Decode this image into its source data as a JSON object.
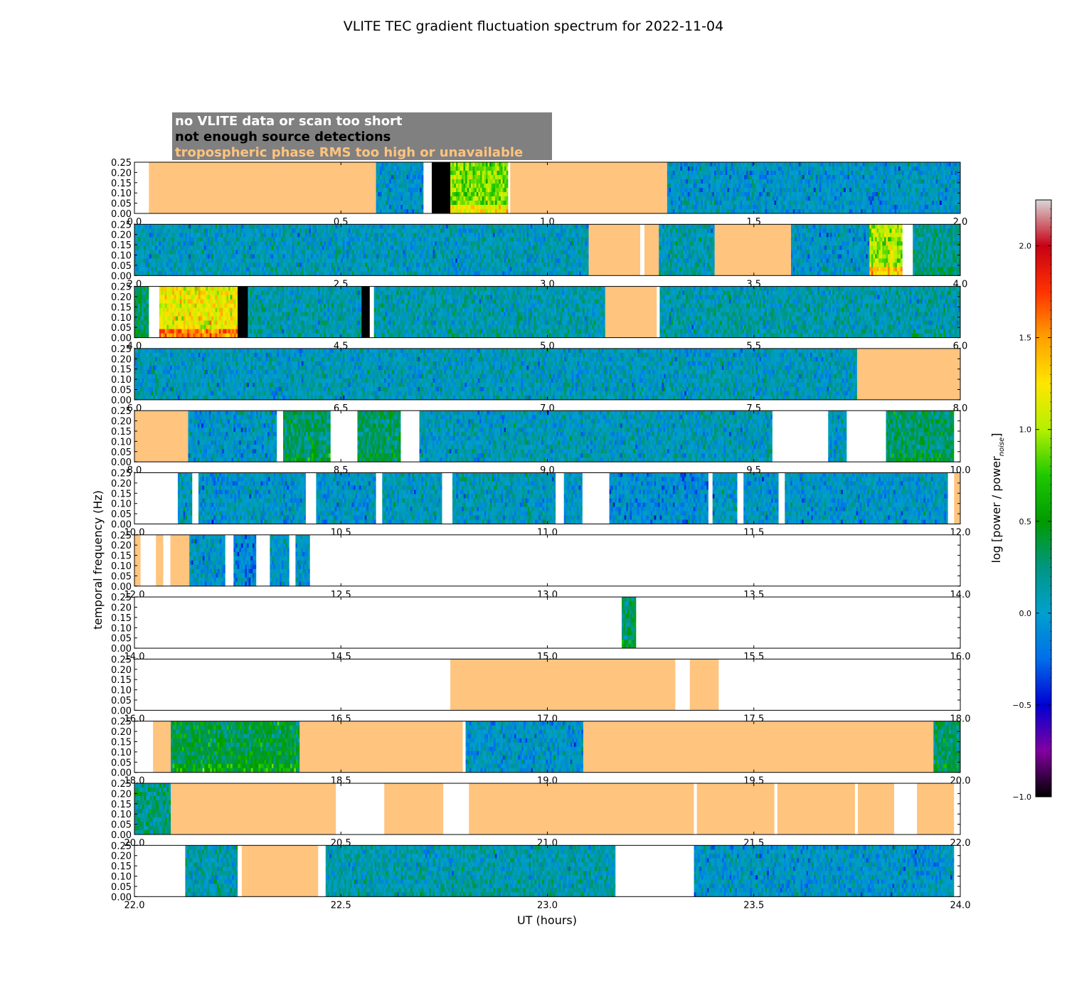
{
  "chart_data": {
    "type": "heatmap",
    "title": "VLITE TEC gradient fluctuation spectrum for 2022-11-04",
    "xlabel": "UT (hours)",
    "ylabel": "temporal frequency (Hz)",
    "colorbar_label": "log [power / power",
    "colorbar_label_sub": "noise",
    "colorbar_label_end": "]",
    "colorbar_range": [
      -1.0,
      2.25
    ],
    "colorbar_ticks": [
      "2.0",
      "1.5",
      "1.0",
      "0.5",
      "0.0",
      "−0.5",
      "−1.0"
    ],
    "colorbar_tick_values": [
      2.0,
      1.5,
      1.0,
      0.5,
      0.0,
      -0.5,
      -1.0
    ],
    "ylim": [
      0,
      0.25
    ],
    "yticks": [
      "0.25",
      "0.20",
      "0.15",
      "0.10",
      "0.05",
      "0.00"
    ],
    "ytick_values": [
      0.25,
      0.2,
      0.15,
      0.1,
      0.05,
      0.0
    ],
    "legend": [
      {
        "label": "no VLITE data or scan too short",
        "color": "#ffffff"
      },
      {
        "label": "not enough source detections",
        "color": "#000000"
      },
      {
        "label": "tropospheric phase RMS too high or unavailable",
        "color": "#ffc47e"
      }
    ],
    "colors": {
      "flagged_troposphere": "#ffc47e",
      "no_detections": "#000000",
      "no_data": "#ffffff"
    },
    "panels": [
      {
        "xlim": [
          0,
          2
        ],
        "xticks": [
          "0.0",
          "0.5",
          "1.0",
          "1.5",
          "2.0"
        ],
        "segments": [
          {
            "start": 0.0,
            "end": 0.035,
            "status": "nodata"
          },
          {
            "start": 0.035,
            "end": 0.585,
            "status": "tropo"
          },
          {
            "start": 0.585,
            "end": 0.7,
            "status": "data",
            "level": 0.0
          },
          {
            "start": 0.7,
            "end": 0.72,
            "status": "nodata"
          },
          {
            "start": 0.72,
            "end": 0.765,
            "status": "nodet"
          },
          {
            "start": 0.765,
            "end": 0.905,
            "status": "data",
            "level": 0.9
          },
          {
            "start": 0.905,
            "end": 0.91,
            "status": "nodata"
          },
          {
            "start": 0.91,
            "end": 1.29,
            "status": "tropo"
          },
          {
            "start": 1.29,
            "end": 2.0,
            "status": "data",
            "level": 0.0
          }
        ]
      },
      {
        "xlim": [
          2,
          4
        ],
        "xticks": [
          "2.0",
          "2.5",
          "3.0",
          "3.5",
          "4.0"
        ],
        "segments": [
          {
            "start": 2.0,
            "end": 3.1,
            "status": "data",
            "level": 0.05
          },
          {
            "start": 3.1,
            "end": 3.225,
            "status": "tropo"
          },
          {
            "start": 3.225,
            "end": 3.235,
            "status": "nodata"
          },
          {
            "start": 3.235,
            "end": 3.27,
            "status": "tropo"
          },
          {
            "start": 3.27,
            "end": 3.405,
            "status": "data",
            "level": 0.1
          },
          {
            "start": 3.405,
            "end": 3.59,
            "status": "tropo"
          },
          {
            "start": 3.59,
            "end": 3.78,
            "status": "data",
            "level": 0.0
          },
          {
            "start": 3.78,
            "end": 3.86,
            "status": "data",
            "level": 1.0
          },
          {
            "start": 3.86,
            "end": 3.885,
            "status": "nodata"
          },
          {
            "start": 3.885,
            "end": 4.0,
            "status": "data",
            "level": 0.2
          }
        ]
      },
      {
        "xlim": [
          4,
          6
        ],
        "xticks": [
          "4.0",
          "4.5",
          "5.0",
          "5.5",
          "6.0"
        ],
        "segments": [
          {
            "start": 4.0,
            "end": 4.035,
            "status": "data",
            "level": 0.3
          },
          {
            "start": 4.035,
            "end": 4.06,
            "status": "nodata"
          },
          {
            "start": 4.06,
            "end": 4.25,
            "status": "data",
            "level": 1.2
          },
          {
            "start": 4.25,
            "end": 4.275,
            "status": "nodet"
          },
          {
            "start": 4.275,
            "end": 4.55,
            "status": "data",
            "level": 0.1
          },
          {
            "start": 4.55,
            "end": 4.57,
            "status": "nodet"
          },
          {
            "start": 4.57,
            "end": 4.58,
            "status": "nodata"
          },
          {
            "start": 4.58,
            "end": 5.14,
            "status": "data",
            "level": 0.1
          },
          {
            "start": 5.14,
            "end": 5.265,
            "status": "tropo"
          },
          {
            "start": 5.265,
            "end": 5.272,
            "status": "nodata"
          },
          {
            "start": 5.272,
            "end": 6.0,
            "status": "data",
            "level": 0.1
          }
        ]
      },
      {
        "xlim": [
          6,
          8
        ],
        "xticks": [
          "6.0",
          "6.5",
          "7.0",
          "7.5",
          "8.0"
        ],
        "segments": [
          {
            "start": 6.0,
            "end": 7.75,
            "status": "data",
            "level": 0.05
          },
          {
            "start": 7.75,
            "end": 8.0,
            "status": "tropo"
          }
        ]
      },
      {
        "xlim": [
          8,
          10
        ],
        "xticks": [
          "8.0",
          "8.5",
          "9.0",
          "9.5",
          "10.0"
        ],
        "segments": [
          {
            "start": 8.0,
            "end": 8.13,
            "status": "tropo"
          },
          {
            "start": 8.13,
            "end": 8.345,
            "status": "data",
            "level": 0.0
          },
          {
            "start": 8.345,
            "end": 8.36,
            "status": "nodata"
          },
          {
            "start": 8.36,
            "end": 8.475,
            "status": "data",
            "level": 0.3
          },
          {
            "start": 8.475,
            "end": 8.54,
            "status": "nodata"
          },
          {
            "start": 8.54,
            "end": 8.645,
            "status": "data",
            "level": 0.3
          },
          {
            "start": 8.645,
            "end": 8.69,
            "status": "nodata"
          },
          {
            "start": 8.69,
            "end": 9.545,
            "status": "data",
            "level": 0.05
          },
          {
            "start": 9.545,
            "end": 9.68,
            "status": "nodata"
          },
          {
            "start": 9.68,
            "end": 9.725,
            "status": "data",
            "level": 0.05
          },
          {
            "start": 9.725,
            "end": 9.82,
            "status": "nodata"
          },
          {
            "start": 9.82,
            "end": 9.985,
            "status": "data",
            "level": 0.3
          },
          {
            "start": 9.985,
            "end": 10.0,
            "status": "nodata"
          }
        ]
      },
      {
        "xlim": [
          10,
          12
        ],
        "xticks": [
          "10.0",
          "10.5",
          "11.0",
          "11.5",
          "12.0"
        ],
        "segments": [
          {
            "start": 10.0,
            "end": 10.105,
            "status": "nodata"
          },
          {
            "start": 10.105,
            "end": 10.14,
            "status": "data",
            "level": 0.05
          },
          {
            "start": 10.14,
            "end": 10.155,
            "status": "nodata"
          },
          {
            "start": 10.155,
            "end": 10.415,
            "status": "data",
            "level": 0.0
          },
          {
            "start": 10.415,
            "end": 10.44,
            "status": "nodata"
          },
          {
            "start": 10.44,
            "end": 10.585,
            "status": "data",
            "level": 0.0
          },
          {
            "start": 10.585,
            "end": 10.6,
            "status": "nodata"
          },
          {
            "start": 10.6,
            "end": 10.745,
            "status": "data",
            "level": 0.05
          },
          {
            "start": 10.745,
            "end": 10.77,
            "status": "nodata"
          },
          {
            "start": 10.77,
            "end": 11.02,
            "status": "data",
            "level": 0.05
          },
          {
            "start": 11.02,
            "end": 11.04,
            "status": "nodata"
          },
          {
            "start": 11.04,
            "end": 11.085,
            "status": "data",
            "level": 0.0
          },
          {
            "start": 11.085,
            "end": 11.15,
            "status": "nodata"
          },
          {
            "start": 11.15,
            "end": 11.39,
            "status": "data",
            "level": -0.05
          },
          {
            "start": 11.39,
            "end": 11.4,
            "status": "nodata"
          },
          {
            "start": 11.4,
            "end": 11.46,
            "status": "data",
            "level": 0.0
          },
          {
            "start": 11.46,
            "end": 11.475,
            "status": "nodata"
          },
          {
            "start": 11.475,
            "end": 11.56,
            "status": "data",
            "level": 0.0
          },
          {
            "start": 11.56,
            "end": 11.575,
            "status": "nodata"
          },
          {
            "start": 11.575,
            "end": 11.97,
            "status": "data",
            "level": 0.0
          },
          {
            "start": 11.97,
            "end": 11.985,
            "status": "nodata"
          },
          {
            "start": 11.985,
            "end": 12.0,
            "status": "tropo"
          }
        ]
      },
      {
        "xlim": [
          12,
          14
        ],
        "xticks": [
          "12.0",
          "12.5",
          "13.0",
          "13.5",
          "14.0"
        ],
        "segments": [
          {
            "start": 12.0,
            "end": 12.015,
            "status": "tropo"
          },
          {
            "start": 12.015,
            "end": 12.052,
            "status": "nodata"
          },
          {
            "start": 12.052,
            "end": 12.07,
            "status": "tropo"
          },
          {
            "start": 12.07,
            "end": 12.087,
            "status": "nodata"
          },
          {
            "start": 12.087,
            "end": 12.133,
            "status": "tropo"
          },
          {
            "start": 12.133,
            "end": 12.22,
            "status": "data",
            "level": 0.0
          },
          {
            "start": 12.22,
            "end": 12.24,
            "status": "nodata"
          },
          {
            "start": 12.24,
            "end": 12.295,
            "status": "data",
            "level": -0.1
          },
          {
            "start": 12.295,
            "end": 12.328,
            "status": "nodata"
          },
          {
            "start": 12.328,
            "end": 12.375,
            "status": "data",
            "level": 0.0
          },
          {
            "start": 12.375,
            "end": 12.39,
            "status": "nodata"
          },
          {
            "start": 12.39,
            "end": 12.425,
            "status": "data",
            "level": 0.0
          },
          {
            "start": 12.425,
            "end": 14.0,
            "status": "nodata"
          }
        ]
      },
      {
        "xlim": [
          14,
          16
        ],
        "xticks": [
          "14.0",
          "14.5",
          "15.0",
          "15.5",
          "16.0"
        ],
        "segments": [
          {
            "start": 14.0,
            "end": 15.18,
            "status": "nodata"
          },
          {
            "start": 15.18,
            "end": 15.215,
            "status": "data",
            "level": 0.3
          },
          {
            "start": 15.215,
            "end": 16.0,
            "status": "nodata"
          }
        ]
      },
      {
        "xlim": [
          16,
          18
        ],
        "xticks": [
          "16.0",
          "16.5",
          "17.0",
          "17.5",
          "18.0"
        ],
        "segments": [
          {
            "start": 16.0,
            "end": 16.765,
            "status": "nodata"
          },
          {
            "start": 16.765,
            "end": 17.31,
            "status": "tropo"
          },
          {
            "start": 17.31,
            "end": 17.345,
            "status": "nodata"
          },
          {
            "start": 17.345,
            "end": 17.415,
            "status": "tropo"
          },
          {
            "start": 17.415,
            "end": 18.0,
            "status": "nodata"
          }
        ]
      },
      {
        "xlim": [
          18,
          20
        ],
        "xticks": [
          "18.0",
          "18.5",
          "19.0",
          "19.5",
          "20.0"
        ],
        "segments": [
          {
            "start": 18.0,
            "end": 18.045,
            "status": "nodata"
          },
          {
            "start": 18.045,
            "end": 18.088,
            "status": "tropo"
          },
          {
            "start": 18.088,
            "end": 18.4,
            "status": "data",
            "level": 0.4
          },
          {
            "start": 18.4,
            "end": 18.795,
            "status": "tropo"
          },
          {
            "start": 18.795,
            "end": 18.802,
            "status": "nodata"
          },
          {
            "start": 18.802,
            "end": 19.087,
            "status": "data",
            "level": 0.0
          },
          {
            "start": 19.087,
            "end": 19.935,
            "status": "tropo"
          },
          {
            "start": 19.935,
            "end": 20.0,
            "status": "data",
            "level": 0.3
          }
        ]
      },
      {
        "xlim": [
          20,
          22
        ],
        "xticks": [
          "20.0",
          "20.5",
          "21.0",
          "21.5",
          "22.0"
        ],
        "segments": [
          {
            "start": 20.0,
            "end": 20.088,
            "status": "data",
            "level": 0.2
          },
          {
            "start": 20.088,
            "end": 20.488,
            "status": "tropo"
          },
          {
            "start": 20.488,
            "end": 20.605,
            "status": "nodata"
          },
          {
            "start": 20.605,
            "end": 20.748,
            "status": "tropo"
          },
          {
            "start": 20.748,
            "end": 20.81,
            "status": "nodata"
          },
          {
            "start": 20.81,
            "end": 21.355,
            "status": "tropo"
          },
          {
            "start": 21.355,
            "end": 21.362,
            "status": "nodata"
          },
          {
            "start": 21.362,
            "end": 21.55,
            "status": "tropo"
          },
          {
            "start": 21.55,
            "end": 21.557,
            "status": "nodata"
          },
          {
            "start": 21.557,
            "end": 21.745,
            "status": "tropo"
          },
          {
            "start": 21.745,
            "end": 21.752,
            "status": "nodata"
          },
          {
            "start": 21.752,
            "end": 21.84,
            "status": "tropo"
          },
          {
            "start": 21.84,
            "end": 21.895,
            "status": "nodata"
          },
          {
            "start": 21.895,
            "end": 21.985,
            "status": "tropo"
          },
          {
            "start": 21.985,
            "end": 22.0,
            "status": "nodata"
          }
        ]
      },
      {
        "xlim": [
          22,
          24
        ],
        "xticks": [
          "22.0",
          "22.5",
          "23.0",
          "23.5",
          "24.0"
        ],
        "segments": [
          {
            "start": 22.0,
            "end": 22.123,
            "status": "nodata"
          },
          {
            "start": 22.123,
            "end": 22.25,
            "status": "data",
            "level": 0.1
          },
          {
            "start": 22.25,
            "end": 22.26,
            "status": "nodata"
          },
          {
            "start": 22.26,
            "end": 22.445,
            "status": "tropo"
          },
          {
            "start": 22.445,
            "end": 22.463,
            "status": "nodata"
          },
          {
            "start": 22.463,
            "end": 23.165,
            "status": "data",
            "level": 0.1
          },
          {
            "start": 23.165,
            "end": 23.355,
            "status": "nodata"
          },
          {
            "start": 23.355,
            "end": 23.985,
            "status": "data",
            "level": 0.0
          },
          {
            "start": 23.985,
            "end": 24.0,
            "status": "nodata"
          }
        ]
      }
    ]
  }
}
